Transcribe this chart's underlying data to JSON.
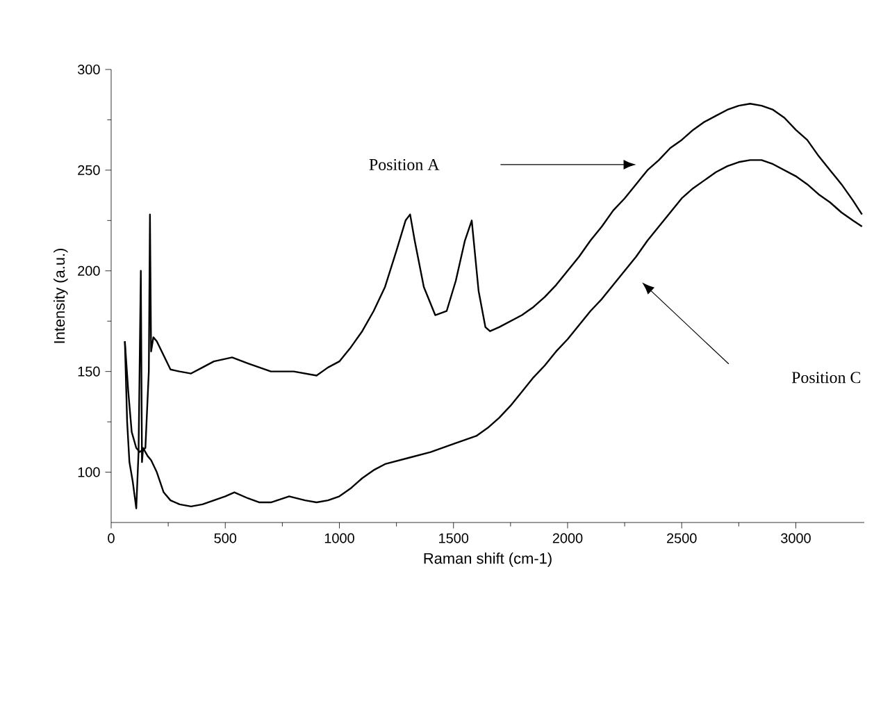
{
  "chart_data": {
    "type": "line",
    "xlabel": "Raman shift (cm-1)",
    "ylabel": "Intensity (a.u.)",
    "xlim": [
      0,
      3300
    ],
    "ylim": [
      75,
      300
    ],
    "xticks": [
      0,
      500,
      1000,
      1500,
      2000,
      2500,
      3000
    ],
    "yticks": [
      100,
      150,
      200,
      250,
      300
    ],
    "grid": false,
    "marker": "none",
    "line_style": "solid",
    "annotations": [
      "Position A",
      "Position C"
    ],
    "series": [
      {
        "color": "#000000",
        "x": [
          60,
          75,
          90,
          110,
          125,
          150,
          165,
          170,
          175,
          185,
          200,
          230,
          260,
          300,
          350,
          400,
          450,
          530,
          600,
          700,
          800,
          900,
          950,
          1000,
          1050,
          1100,
          1150,
          1200,
          1250,
          1290,
          1310,
          1330,
          1370,
          1420,
          1470,
          1510,
          1550,
          1580,
          1610,
          1640,
          1660,
          1700,
          1750,
          1800,
          1850,
          1900,
          1950,
          2000,
          2050,
          2100,
          2150,
          2200,
          2250,
          2300,
          2350,
          2400,
          2450,
          2500,
          2550,
          2600,
          2650,
          2700,
          2750,
          2800,
          2850,
          2900,
          2950,
          3000,
          3050,
          3100,
          3150,
          3200,
          3250,
          3290
        ],
        "values": [
          165,
          140,
          120,
          112,
          110,
          112,
          150,
          228,
          160,
          167,
          165,
          158,
          151,
          150,
          149,
          152,
          155,
          157,
          154,
          150,
          150,
          148,
          152,
          155,
          162,
          170,
          180,
          192,
          210,
          225,
          228,
          215,
          192,
          178,
          180,
          195,
          215,
          225,
          190,
          172,
          170,
          172,
          175,
          178,
          182,
          187,
          193,
          200,
          207,
          215,
          222,
          230,
          236,
          243,
          250,
          255,
          261,
          265,
          270,
          274,
          277,
          280,
          282,
          283,
          282,
          280,
          276,
          270,
          265,
          257,
          250,
          243,
          235,
          228
        ]
      },
      {
        "color": "#000000",
        "x": [
          60,
          70,
          80,
          95,
          110,
          120,
          130,
          135,
          140,
          150,
          160,
          175,
          200,
          230,
          260,
          300,
          350,
          400,
          450,
          500,
          540,
          600,
          650,
          700,
          780,
          850,
          900,
          950,
          1000,
          1050,
          1100,
          1150,
          1200,
          1300,
          1400,
          1500,
          1600,
          1650,
          1700,
          1750,
          1800,
          1850,
          1900,
          1950,
          2000,
          2050,
          2100,
          2150,
          2200,
          2250,
          2300,
          2350,
          2400,
          2450,
          2500,
          2550,
          2600,
          2650,
          2700,
          2750,
          2800,
          2850,
          2900,
          2950,
          3000,
          3050,
          3100,
          3150,
          3200,
          3250,
          3290
        ],
        "values": [
          165,
          125,
          105,
          95,
          82,
          110,
          200,
          105,
          112,
          110,
          108,
          106,
          100,
          90,
          86,
          84,
          83,
          84,
          86,
          88,
          90,
          87,
          85,
          85,
          88,
          86,
          85,
          86,
          88,
          92,
          97,
          101,
          104,
          107,
          110,
          114,
          118,
          122,
          127,
          133,
          140,
          147,
          153,
          160,
          166,
          173,
          180,
          186,
          193,
          200,
          207,
          215,
          222,
          229,
          236,
          241,
          245,
          249,
          252,
          254,
          255,
          255,
          253,
          250,
          247,
          243,
          238,
          234,
          229,
          225,
          222
        ]
      }
    ]
  }
}
